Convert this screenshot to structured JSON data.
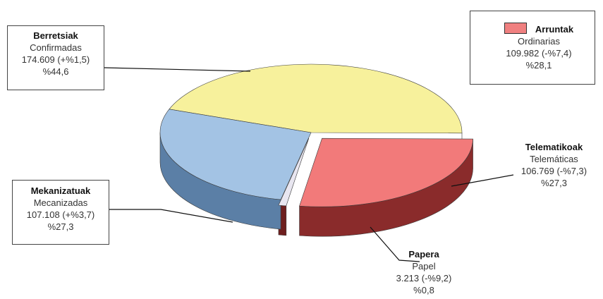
{
  "chart_data": {
    "type": "pie",
    "slices": [
      {
        "title": "Berretsiak",
        "subtitle": "Confirmadas",
        "value_text": "174.609 (+%1,5)",
        "percent_text": "%44,6",
        "value": 174609,
        "percent": 44.6,
        "color": "#f7f19c",
        "side_color": "#c9c35e"
      },
      {
        "title": "Telematikoak",
        "subtitle": "Telemáticas",
        "value_text": "106.769 (-%7,3)",
        "percent_text": "%27,3",
        "value": 106769,
        "percent": 27.3,
        "color": "#f27a7a",
        "side_color": "#8a2b2b"
      },
      {
        "title": "Papera",
        "subtitle": "Papel",
        "value_text": "3.213 (-%9,2)",
        "percent_text": "%0,8",
        "value": 3213,
        "percent": 0.8,
        "color": "#e8e6f0",
        "side_color": "#6e1f1f"
      },
      {
        "title": "Mekanizatuak",
        "subtitle": "Mecanizadas",
        "value_text": "107.108 (+%3,7)",
        "percent_text": "%27,3",
        "value": 107108,
        "percent": 27.3,
        "color": "#a3c3e4",
        "side_color": "#5b7fa6"
      }
    ],
    "group": {
      "title": "Arruntak",
      "subtitle": "Ordinarias",
      "value_text": "109.982 (-%7,4)",
      "percent_text": "%28,1",
      "value": 109982,
      "percent": 28.1,
      "color": "#f08080"
    },
    "legend_position": "top-right"
  }
}
